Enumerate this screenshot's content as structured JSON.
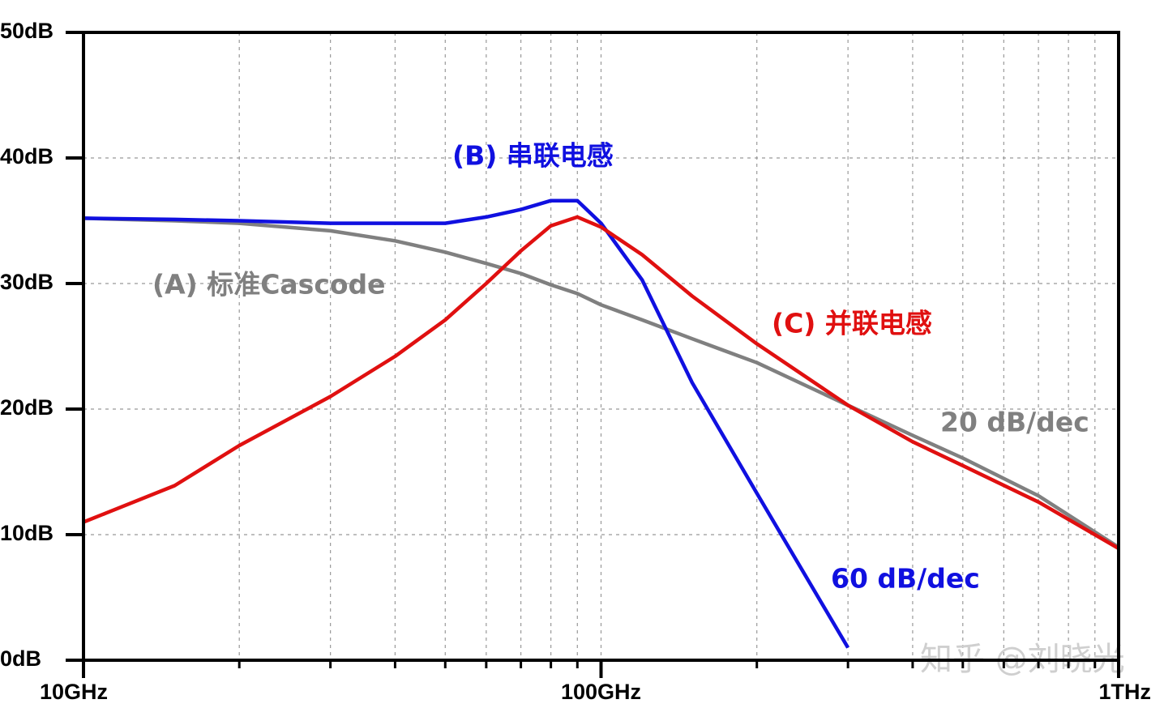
{
  "chart_data": {
    "type": "line",
    "x": [
      10,
      15,
      20,
      30,
      40,
      50,
      60,
      70,
      80,
      90,
      100,
      120,
      150,
      200,
      300,
      400,
      500,
      700,
      1000
    ],
    "series": [
      {
        "name": "(A) 标准Cascode",
        "color": "#808080",
        "values": [
          35.2,
          35.0,
          34.8,
          34.2,
          33.4,
          32.5,
          31.6,
          30.8,
          29.9,
          29.2,
          28.3,
          27.1,
          25.6,
          23.7,
          20.3,
          17.9,
          16.1,
          13.1,
          9.0
        ]
      },
      {
        "name": "(B) 串联电感",
        "color": "#1010e0",
        "values": [
          35.2,
          35.1,
          35.0,
          34.8,
          34.8,
          34.8,
          35.3,
          35.9,
          36.6,
          36.6,
          34.8,
          30.3,
          22.1,
          13.3,
          1.0,
          null,
          null,
          null,
          null
        ]
      },
      {
        "name": "(C) 并联电感",
        "color": "#e01010",
        "values": [
          11.0,
          13.9,
          17.1,
          21.0,
          24.2,
          27.1,
          30.0,
          32.6,
          34.6,
          35.3,
          34.5,
          32.3,
          29.0,
          25.2,
          20.3,
          17.4,
          15.5,
          12.6,
          8.9
        ]
      }
    ],
    "annotations": [
      {
        "text": "(A) 标准Cascode",
        "color": "#808080"
      },
      {
        "text": "(B) 串联电感",
        "color": "#1010e0"
      },
      {
        "text": "(C) 并联电感",
        "color": "#e01010"
      },
      {
        "text": "20 dB/dec",
        "color": "#808080"
      },
      {
        "text": "60 dB/dec",
        "color": "#1010e0"
      }
    ],
    "watermark": "知乎 @刘晓光",
    "xscale": "log",
    "xlim": [
      10,
      1000
    ],
    "xticks": [
      {
        "value": 10,
        "label": "10GHz"
      },
      {
        "value": 100,
        "label": "100GHz"
      },
      {
        "value": 1000,
        "label": "1THz"
      }
    ],
    "xminorticks": [
      20,
      30,
      40,
      50,
      60,
      70,
      80,
      90,
      200,
      300,
      400,
      500,
      600,
      700,
      800,
      900
    ],
    "ylim": [
      0,
      50
    ],
    "yticks": [
      {
        "value": 0,
        "label": "0dB"
      },
      {
        "value": 10,
        "label": "10dB"
      },
      {
        "value": 20,
        "label": "20dB"
      },
      {
        "value": 30,
        "label": "30dB"
      },
      {
        "value": 40,
        "label": "40dB"
      },
      {
        "value": 50,
        "label": "50dB"
      }
    ],
    "grid": true
  }
}
